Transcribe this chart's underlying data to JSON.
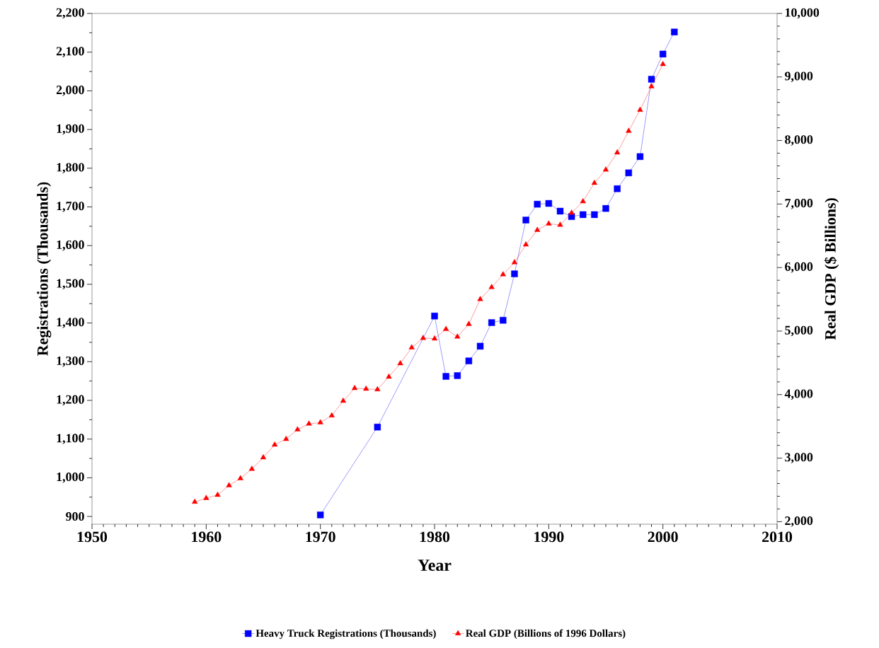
{
  "chart_data": {
    "type": "line",
    "xlabel": "Year",
    "ylabel": "Registrations (Thousands)",
    "y2label": "Real GDP ($ Billions)",
    "xlim": [
      1950,
      2010
    ],
    "xticks": [
      1950,
      1960,
      1970,
      1980,
      1990,
      2000,
      2010
    ],
    "ylim": [
      880,
      2200
    ],
    "yticks": [
      {
        "value": 900,
        "label": "900"
      },
      {
        "value": 1000,
        "label": "1,000"
      },
      {
        "value": 1100,
        "label": "1,100"
      },
      {
        "value": 1200,
        "label": "1,200"
      },
      {
        "value": 1300,
        "label": "1,300"
      },
      {
        "value": 1400,
        "label": "1,400"
      },
      {
        "value": 1500,
        "label": "1,500"
      },
      {
        "value": 1600,
        "label": "1,600"
      },
      {
        "value": 1700,
        "label": "1,700"
      },
      {
        "value": 1800,
        "label": "1,800"
      },
      {
        "value": 1900,
        "label": "1,900"
      },
      {
        "value": 2000,
        "label": "2,000"
      },
      {
        "value": 2100,
        "label": "2,100"
      },
      {
        "value": 2200,
        "label": "2,200"
      }
    ],
    "y2lim": [
      1960,
      10000
    ],
    "y2ticks": [
      {
        "value": 2000,
        "label": "2,000"
      },
      {
        "value": 3000,
        "label": "3,000"
      },
      {
        "value": 4000,
        "label": "4,000"
      },
      {
        "value": 5000,
        "label": "5,000"
      },
      {
        "value": 6000,
        "label": "6,000"
      },
      {
        "value": 7000,
        "label": "7,000"
      },
      {
        "value": 8000,
        "label": "8,000"
      },
      {
        "value": 9000,
        "label": "9,000"
      },
      {
        "value": 10000,
        "label": "10,000"
      }
    ],
    "grid": false,
    "legend": "bottom",
    "line_style": "solid",
    "series": [
      {
        "name": "Heavy Truck Registrations (Thousands)",
        "color": "#0000ff",
        "marker": "square",
        "x": [
          1970,
          1975,
          1980,
          1981,
          1982,
          1983,
          1984,
          1985,
          1986,
          1987,
          1988,
          1989,
          1990,
          1991,
          1992,
          1993,
          1994,
          1995,
          1996,
          1997,
          1998,
          1999,
          2000,
          2001
        ],
        "values": [
          904,
          1131,
          1418,
          1262,
          1264,
          1302,
          1340,
          1401,
          1407,
          1527,
          1666,
          1707,
          1709,
          1689,
          1675,
          1680,
          1680,
          1696,
          1747,
          1788,
          1830,
          2030,
          2095,
          2152
        ]
      },
      {
        "name": "Real GDP (Billions of 1996 Dollars)",
        "color": "#ff0000",
        "marker": "triangle",
        "axis": "y2",
        "x": [
          1959,
          1960,
          1961,
          1962,
          1963,
          1964,
          1965,
          1966,
          1967,
          1968,
          1969,
          1970,
          1971,
          1972,
          1973,
          1974,
          1975,
          1976,
          1977,
          1978,
          1979,
          1980,
          1981,
          1982,
          1983,
          1984,
          1985,
          1986,
          1987,
          1988,
          1989,
          1990,
          1991,
          1992,
          1993,
          1994,
          1995,
          1996,
          1997,
          1998,
          1999,
          2000
        ],
        "values": [
          2310,
          2370,
          2420,
          2570,
          2680,
          2830,
          3010,
          3210,
          3300,
          3450,
          3540,
          3560,
          3670,
          3900,
          4100,
          4090,
          4080,
          4280,
          4490,
          4740,
          4890,
          4880,
          5030,
          4910,
          5110,
          5500,
          5690,
          5890,
          6080,
          6360,
          6590,
          6690,
          6670,
          6860,
          7040,
          7330,
          7540,
          7810,
          8150,
          8480,
          8850,
          9200
        ]
      }
    ]
  }
}
